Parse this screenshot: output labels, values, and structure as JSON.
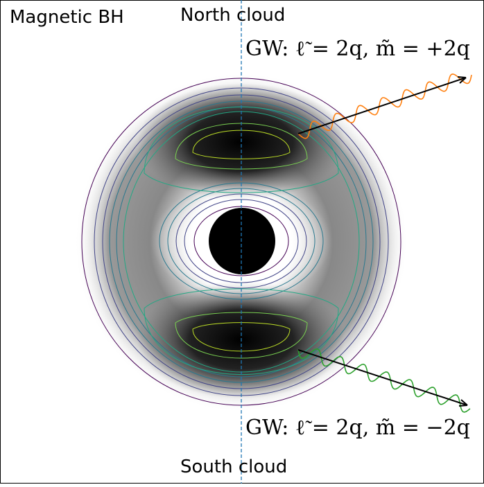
{
  "labels": {
    "corner": "Magnetic BH",
    "north": "North cloud",
    "south": "South cloud",
    "gw_north": "GW: ℓ̃ = 2q,  m̃ = +2q",
    "gw_south": "GW: ℓ̃ = 2q,  m̃ = −2q"
  },
  "colors": {
    "north_wave": "#ff7f0e",
    "south_wave": "#2ca02c",
    "axis": "#1f77b4",
    "contours": [
      "#440154",
      "#414487",
      "#2a788e",
      "#22a884",
      "#7ad151",
      "#bddf26"
    ]
  }
}
